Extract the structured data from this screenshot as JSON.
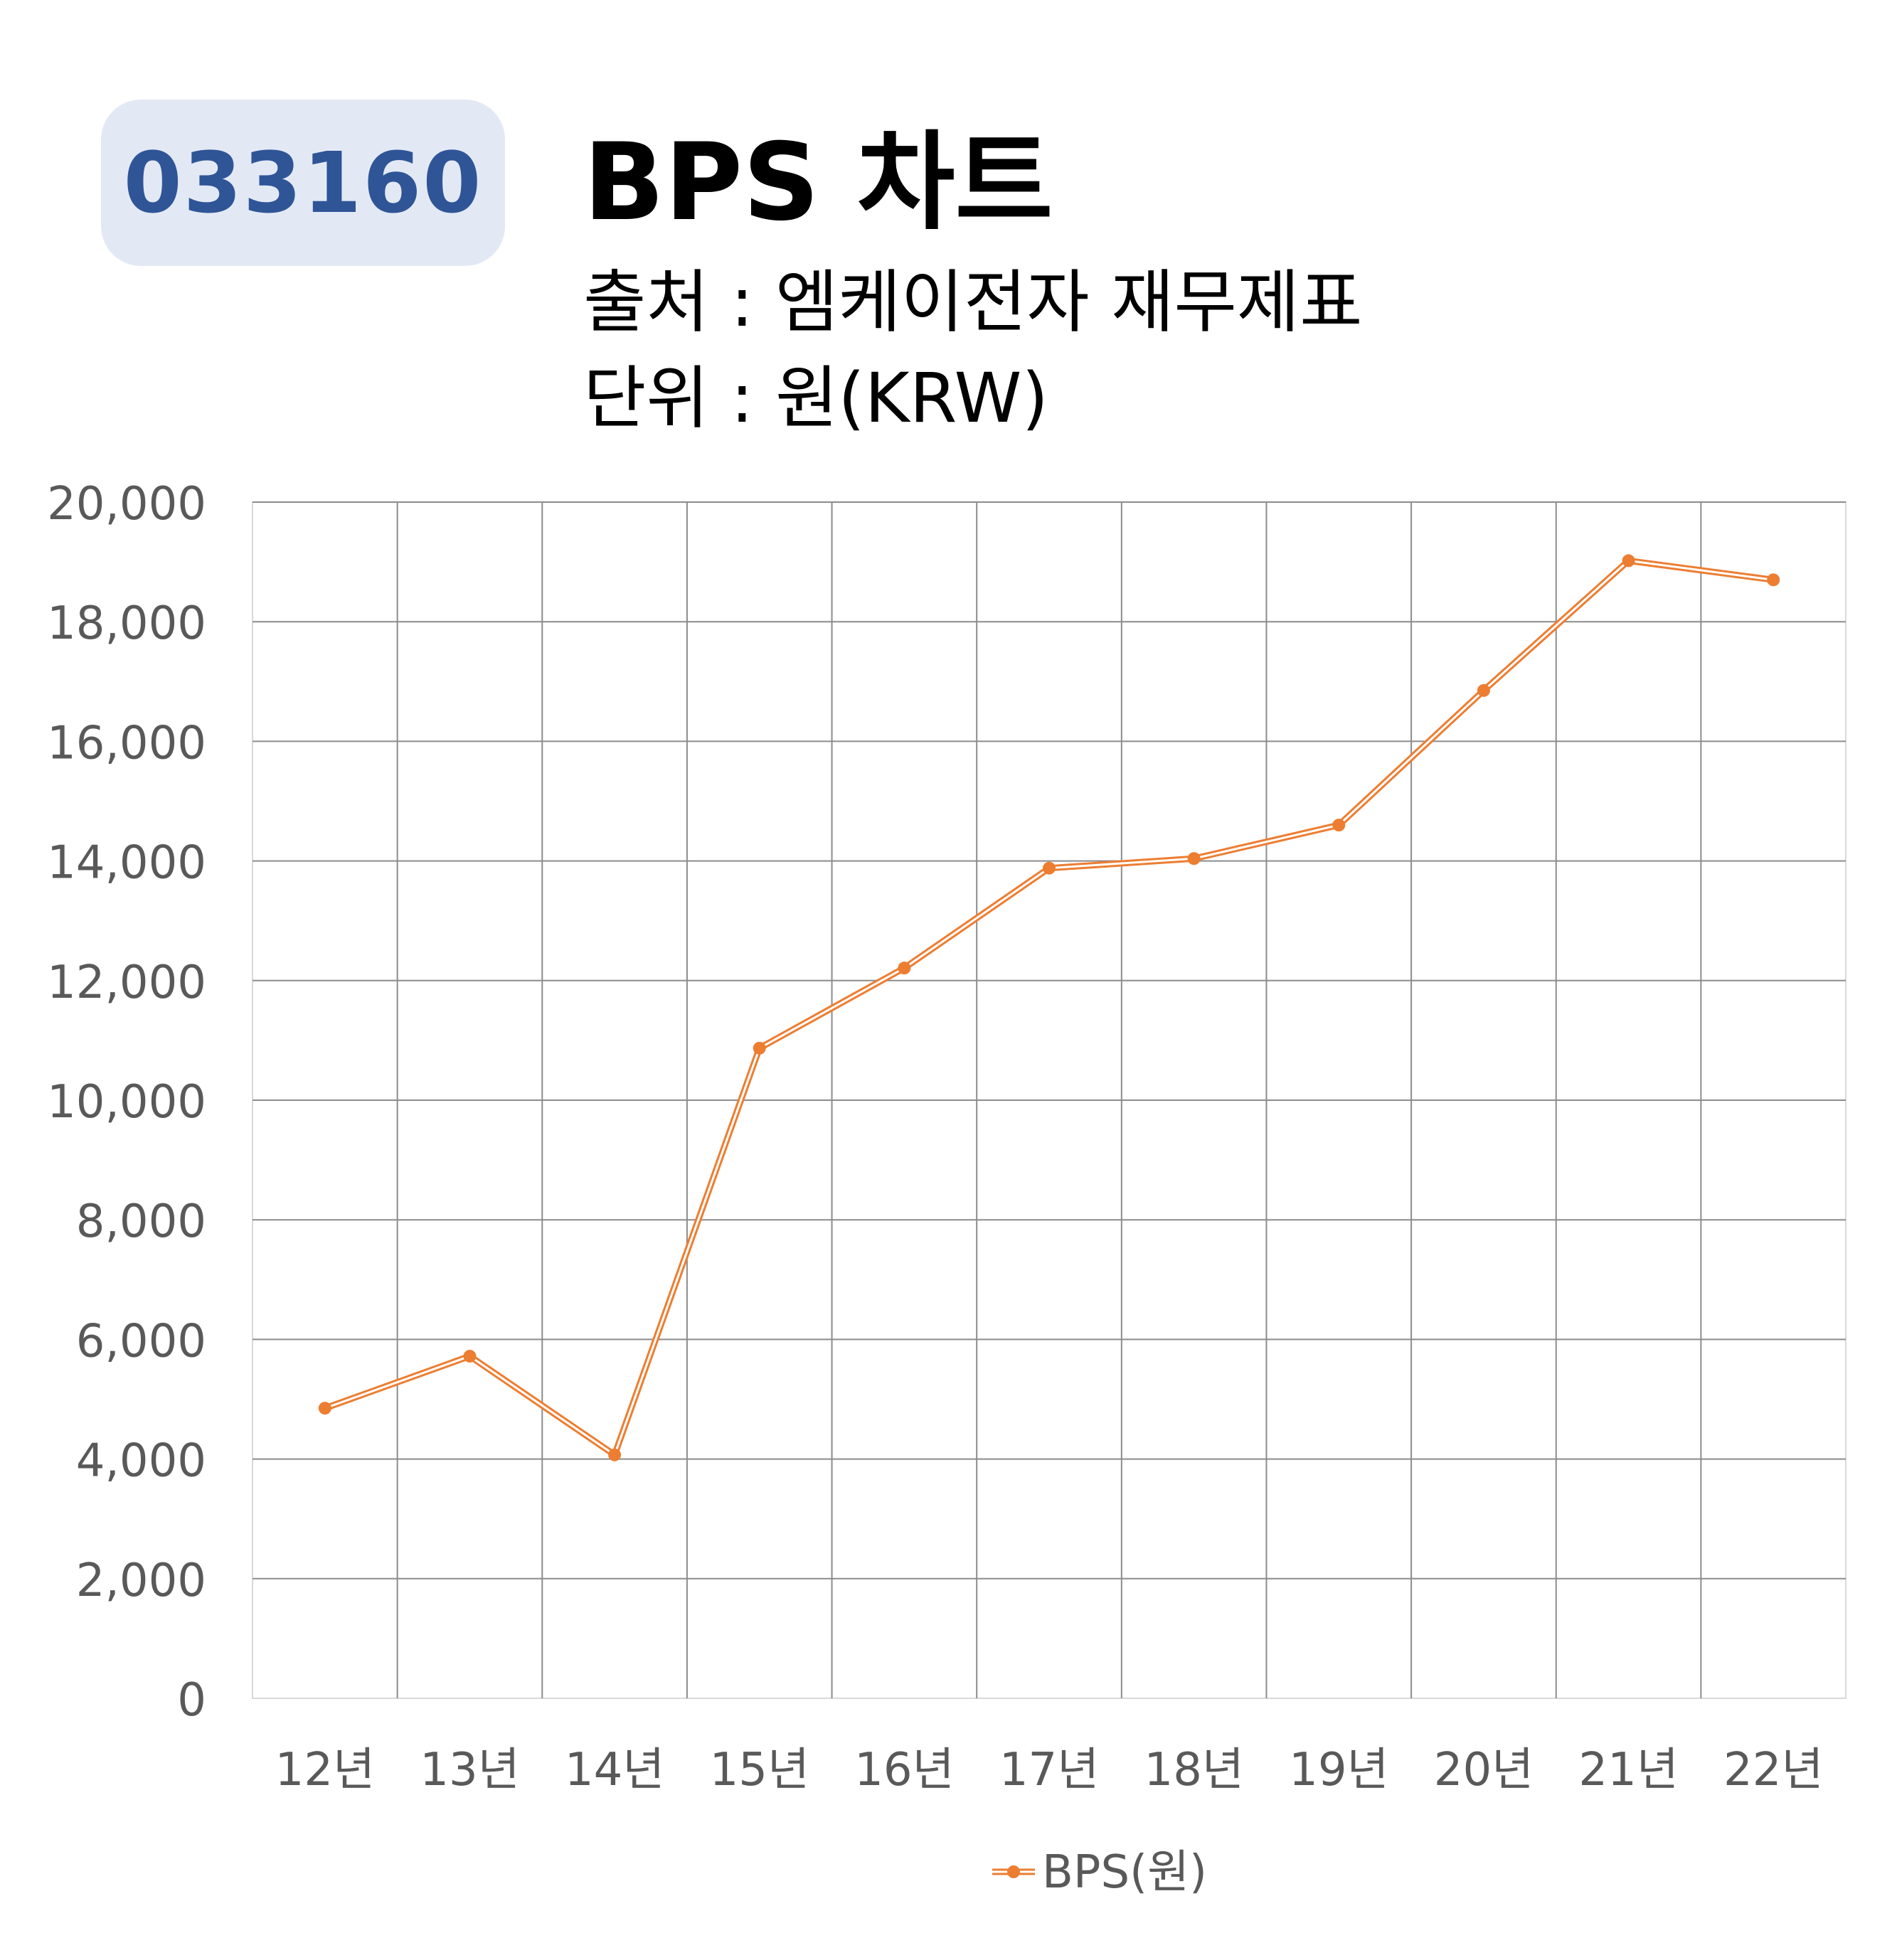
{
  "header": {
    "stock_code": "033160",
    "title": "BPS 차트",
    "source": "출처 : 엠케이전자 재무제표",
    "unit": "단위 : 원(KRW)"
  },
  "colors": {
    "badge_bg": "#e3e9f4",
    "badge_text": "#2f5597",
    "series_line": "#ed7d31",
    "grid": "#8c8c8c",
    "tick_text": "#595959"
  },
  "chart_data": {
    "type": "line",
    "title": "BPS 차트",
    "categories": [
      "12년",
      "13년",
      "14년",
      "15년",
      "16년",
      "17년",
      "18년",
      "19년",
      "20년",
      "21년",
      "22년"
    ],
    "series": [
      {
        "name": "BPS(원)",
        "values": [
          4850,
          5720,
          4070,
          10870,
          12210,
          13880,
          14040,
          14600,
          16850,
          19020,
          18700
        ]
      }
    ],
    "ylim": [
      0,
      20000
    ],
    "yticks": [
      "0",
      "2,000",
      "4,000",
      "6,000",
      "8,000",
      "10,000",
      "12,000",
      "14,000",
      "16,000",
      "18,000",
      "20,000"
    ],
    "xlabel": "",
    "ylabel": "",
    "grid": true,
    "legend_position": "bottom"
  }
}
